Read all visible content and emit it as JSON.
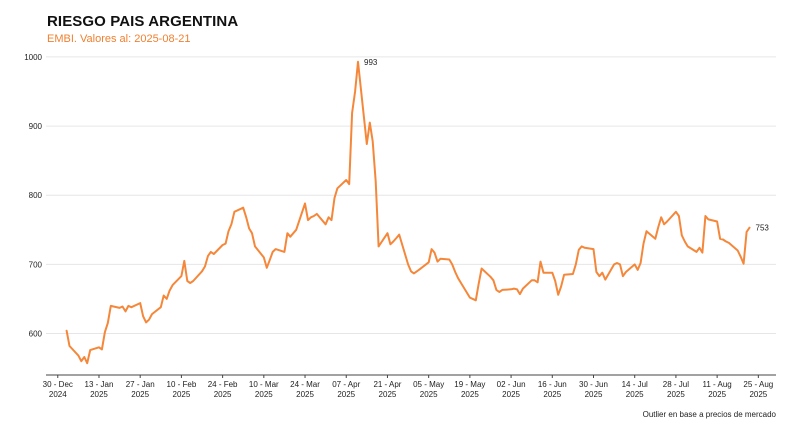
{
  "header": {
    "title": "RIESGO PAIS ARGENTINA",
    "subtitle": "EMBI. Valores al: 2025-08-21"
  },
  "footer": {
    "note": "Outlier en base a precios de mercado"
  },
  "chart_data": {
    "type": "line",
    "title": "RIESGO PAIS ARGENTINA",
    "subtitle": "EMBI. Valores al: 2025-08-21",
    "xlabel": "",
    "ylabel": "",
    "ylim": [
      540,
      1010
    ],
    "y_ticks": [
      600,
      700,
      800,
      900,
      1000
    ],
    "grid": true,
    "x_ticks": [
      {
        "date": "2024-12-30",
        "line1": "30 - Dec",
        "line2": "2024"
      },
      {
        "date": "2025-01-13",
        "line1": "13 - Jan",
        "line2": "2025"
      },
      {
        "date": "2025-01-27",
        "line1": "27 - Jan",
        "line2": "2025"
      },
      {
        "date": "2025-02-10",
        "line1": "10 - Feb",
        "line2": "2025"
      },
      {
        "date": "2025-02-24",
        "line1": "24 - Feb",
        "line2": "2025"
      },
      {
        "date": "2025-03-10",
        "line1": "10 - Mar",
        "line2": "2025"
      },
      {
        "date": "2025-03-24",
        "line1": "24 - Mar",
        "line2": "2025"
      },
      {
        "date": "2025-04-07",
        "line1": "07 - Apr",
        "line2": "2025"
      },
      {
        "date": "2025-04-21",
        "line1": "21 - Apr",
        "line2": "2025"
      },
      {
        "date": "2025-05-05",
        "line1": "05 - May",
        "line2": "2025"
      },
      {
        "date": "2025-05-19",
        "line1": "19 - May",
        "line2": "2025"
      },
      {
        "date": "2025-06-02",
        "line1": "02 - Jun",
        "line2": "2025"
      },
      {
        "date": "2025-06-16",
        "line1": "16 - Jun",
        "line2": "2025"
      },
      {
        "date": "2025-06-30",
        "line1": "30 - Jun",
        "line2": "2025"
      },
      {
        "date": "2025-07-14",
        "line1": "14 - Jul",
        "line2": "2025"
      },
      {
        "date": "2025-07-28",
        "line1": "28 - Jul",
        "line2": "2025"
      },
      {
        "date": "2025-08-11",
        "line1": "11 - Aug",
        "line2": "2025"
      },
      {
        "date": "2025-08-25",
        "line1": "25 - Aug",
        "line2": "2025"
      }
    ],
    "series": [
      {
        "color": "#f5873a",
        "points": [
          [
            "2025-01-02",
            604
          ],
          [
            "2025-01-03",
            582
          ],
          [
            "2025-01-06",
            568
          ],
          [
            "2025-01-07",
            560
          ],
          [
            "2025-01-08",
            566
          ],
          [
            "2025-01-09",
            557
          ],
          [
            "2025-01-10",
            576
          ],
          [
            "2025-01-13",
            580
          ],
          [
            "2025-01-14",
            577
          ],
          [
            "2025-01-15",
            602
          ],
          [
            "2025-01-16",
            615
          ],
          [
            "2025-01-17",
            640
          ],
          [
            "2025-01-20",
            637
          ],
          [
            "2025-01-21",
            639
          ],
          [
            "2025-01-22",
            632
          ],
          [
            "2025-01-23",
            640
          ],
          [
            "2025-01-24",
            638
          ],
          [
            "2025-01-27",
            644
          ],
          [
            "2025-01-28",
            625
          ],
          [
            "2025-01-29",
            616
          ],
          [
            "2025-01-30",
            620
          ],
          [
            "2025-01-31",
            628
          ],
          [
            "2025-02-03",
            638
          ],
          [
            "2025-02-04",
            655
          ],
          [
            "2025-02-05",
            650
          ],
          [
            "2025-02-06",
            662
          ],
          [
            "2025-02-07",
            670
          ],
          [
            "2025-02-10",
            683
          ],
          [
            "2025-02-11",
            705
          ],
          [
            "2025-02-12",
            676
          ],
          [
            "2025-02-13",
            673
          ],
          [
            "2025-02-14",
            676
          ],
          [
            "2025-02-17",
            690
          ],
          [
            "2025-02-18",
            697
          ],
          [
            "2025-02-19",
            712
          ],
          [
            "2025-02-20",
            718
          ],
          [
            "2025-02-21",
            715
          ],
          [
            "2025-02-24",
            728
          ],
          [
            "2025-02-25",
            730
          ],
          [
            "2025-02-26",
            748
          ],
          [
            "2025-02-27",
            758
          ],
          [
            "2025-02-28",
            776
          ],
          [
            "2025-03-03",
            782
          ],
          [
            "2025-03-04",
            768
          ],
          [
            "2025-03-05",
            752
          ],
          [
            "2025-03-06",
            745
          ],
          [
            "2025-03-07",
            726
          ],
          [
            "2025-03-10",
            710
          ],
          [
            "2025-03-11",
            695
          ],
          [
            "2025-03-12",
            706
          ],
          [
            "2025-03-13",
            718
          ],
          [
            "2025-03-14",
            722
          ],
          [
            "2025-03-17",
            718
          ],
          [
            "2025-03-18",
            745
          ],
          [
            "2025-03-19",
            740
          ],
          [
            "2025-03-20",
            745
          ],
          [
            "2025-03-21",
            750
          ],
          [
            "2025-03-24",
            788
          ],
          [
            "2025-03-25",
            764
          ],
          [
            "2025-03-26",
            768
          ],
          [
            "2025-03-27",
            770
          ],
          [
            "2025-03-28",
            773
          ],
          [
            "2025-03-31",
            758
          ],
          [
            "2025-04-01",
            768
          ],
          [
            "2025-04-02",
            764
          ],
          [
            "2025-04-03",
            796
          ],
          [
            "2025-04-04",
            810
          ],
          [
            "2025-04-07",
            822
          ],
          [
            "2025-04-08",
            816
          ],
          [
            "2025-04-09",
            919
          ],
          [
            "2025-04-10",
            950
          ],
          [
            "2025-04-11",
            993
          ],
          [
            "2025-04-14",
            874
          ],
          [
            "2025-04-15",
            905
          ],
          [
            "2025-04-16",
            878
          ],
          [
            "2025-04-17",
            820
          ],
          [
            "2025-04-18",
            726
          ],
          [
            "2025-04-21",
            745
          ],
          [
            "2025-04-22",
            729
          ],
          [
            "2025-04-23",
            733
          ],
          [
            "2025-04-24",
            738
          ],
          [
            "2025-04-25",
            743
          ],
          [
            "2025-04-28",
            700
          ],
          [
            "2025-04-29",
            690
          ],
          [
            "2025-04-30",
            687
          ],
          [
            "2025-05-01",
            690
          ],
          [
            "2025-05-02",
            693
          ],
          [
            "2025-05-05",
            703
          ],
          [
            "2025-05-06",
            722
          ],
          [
            "2025-05-07",
            717
          ],
          [
            "2025-05-08",
            704
          ],
          [
            "2025-05-09",
            708
          ],
          [
            "2025-05-12",
            707
          ],
          [
            "2025-05-13",
            700
          ],
          [
            "2025-05-14",
            689
          ],
          [
            "2025-05-15",
            680
          ],
          [
            "2025-05-16",
            673
          ],
          [
            "2025-05-19",
            652
          ],
          [
            "2025-05-20",
            650
          ],
          [
            "2025-05-21",
            648
          ],
          [
            "2025-05-22",
            672
          ],
          [
            "2025-05-23",
            694
          ],
          [
            "2025-05-26",
            682
          ],
          [
            "2025-05-27",
            677
          ],
          [
            "2025-05-28",
            663
          ],
          [
            "2025-05-29",
            660
          ],
          [
            "2025-05-30",
            663
          ],
          [
            "2025-06-02",
            664
          ],
          [
            "2025-06-03",
            665
          ],
          [
            "2025-06-04",
            664
          ],
          [
            "2025-06-05",
            657
          ],
          [
            "2025-06-06",
            665
          ],
          [
            "2025-06-09",
            677
          ],
          [
            "2025-06-10",
            677
          ],
          [
            "2025-06-11",
            674
          ],
          [
            "2025-06-12",
            704
          ],
          [
            "2025-06-13",
            688
          ],
          [
            "2025-06-16",
            688
          ],
          [
            "2025-06-17",
            676
          ],
          [
            "2025-06-18",
            656
          ],
          [
            "2025-06-19",
            668
          ],
          [
            "2025-06-20",
            685
          ],
          [
            "2025-06-23",
            686
          ],
          [
            "2025-06-24",
            700
          ],
          [
            "2025-06-25",
            721
          ],
          [
            "2025-06-26",
            726
          ],
          [
            "2025-06-27",
            724
          ],
          [
            "2025-06-30",
            722
          ],
          [
            "2025-07-01",
            689
          ],
          [
            "2025-07-02",
            683
          ],
          [
            "2025-07-03",
            688
          ],
          [
            "2025-07-04",
            678
          ],
          [
            "2025-07-07",
            700
          ],
          [
            "2025-07-08",
            702
          ],
          [
            "2025-07-09",
            700
          ],
          [
            "2025-07-10",
            683
          ],
          [
            "2025-07-11",
            689
          ],
          [
            "2025-07-14",
            700
          ],
          [
            "2025-07-15",
            692
          ],
          [
            "2025-07-16",
            702
          ],
          [
            "2025-07-17",
            730
          ],
          [
            "2025-07-18",
            748
          ],
          [
            "2025-07-21",
            737
          ],
          [
            "2025-07-22",
            754
          ],
          [
            "2025-07-23",
            768
          ],
          [
            "2025-07-24",
            758
          ],
          [
            "2025-07-25",
            762
          ],
          [
            "2025-07-28",
            776
          ],
          [
            "2025-07-29",
            770
          ],
          [
            "2025-07-30",
            742
          ],
          [
            "2025-07-31",
            733
          ],
          [
            "2025-08-01",
            726
          ],
          [
            "2025-08-04",
            718
          ],
          [
            "2025-08-05",
            724
          ],
          [
            "2025-08-06",
            717
          ],
          [
            "2025-08-07",
            770
          ],
          [
            "2025-08-08",
            765
          ],
          [
            "2025-08-11",
            762
          ],
          [
            "2025-08-12",
            737
          ],
          [
            "2025-08-13",
            736
          ],
          [
            "2025-08-14",
            733
          ],
          [
            "2025-08-15",
            731
          ],
          [
            "2025-08-18",
            720
          ],
          [
            "2025-08-19",
            711
          ],
          [
            "2025-08-20",
            701
          ],
          [
            "2025-08-21",
            747
          ],
          [
            "2025-08-22",
            753
          ]
        ]
      }
    ],
    "annotations": [
      {
        "date": "2025-04-11",
        "value": 993,
        "label": "993"
      },
      {
        "date": "2025-08-22",
        "value": 753,
        "label": "753"
      }
    ],
    "note": "Outlier en base a precios de mercado"
  }
}
